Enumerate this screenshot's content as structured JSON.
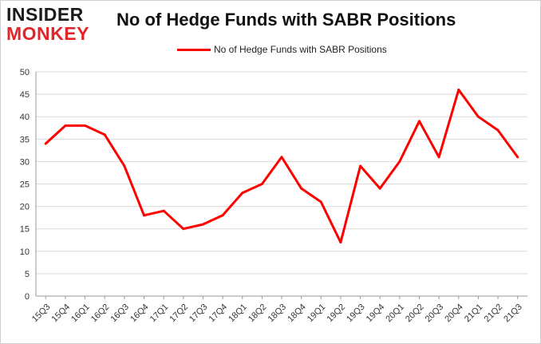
{
  "logo": {
    "top": "INSIDER",
    "bottom": "MONKEY"
  },
  "colors": {
    "series": "#ff0000",
    "grid": "#d9d9d9",
    "logo_accent": "#e0262a"
  },
  "chart_data": {
    "type": "line",
    "title": "No of Hedge Funds with SABR Positions",
    "xlabel": "",
    "ylabel": "",
    "ylim": [
      0,
      50
    ],
    "yticks": [
      0,
      5,
      10,
      15,
      20,
      25,
      30,
      35,
      40,
      45,
      50
    ],
    "grid": true,
    "legend": "top-center",
    "categories": [
      "15Q3",
      "15Q4",
      "16Q1",
      "16Q2",
      "16Q3",
      "16Q4",
      "17Q1",
      "17Q2",
      "17Q3",
      "17Q4",
      "18Q1",
      "18Q2",
      "18Q3",
      "18Q4",
      "19Q1",
      "19Q2",
      "19Q3",
      "19Q4",
      "20Q1",
      "20Q2",
      "20Q3",
      "20Q4",
      "21Q1",
      "21Q2",
      "21Q3"
    ],
    "series": [
      {
        "name": "No of Hedge Funds with SABR Positions",
        "values": [
          34,
          38,
          38,
          36,
          29,
          18,
          19,
          15,
          16,
          18,
          23,
          25,
          31,
          24,
          21,
          12,
          29,
          24,
          30,
          39,
          31,
          46,
          40,
          37,
          31
        ]
      }
    ]
  }
}
